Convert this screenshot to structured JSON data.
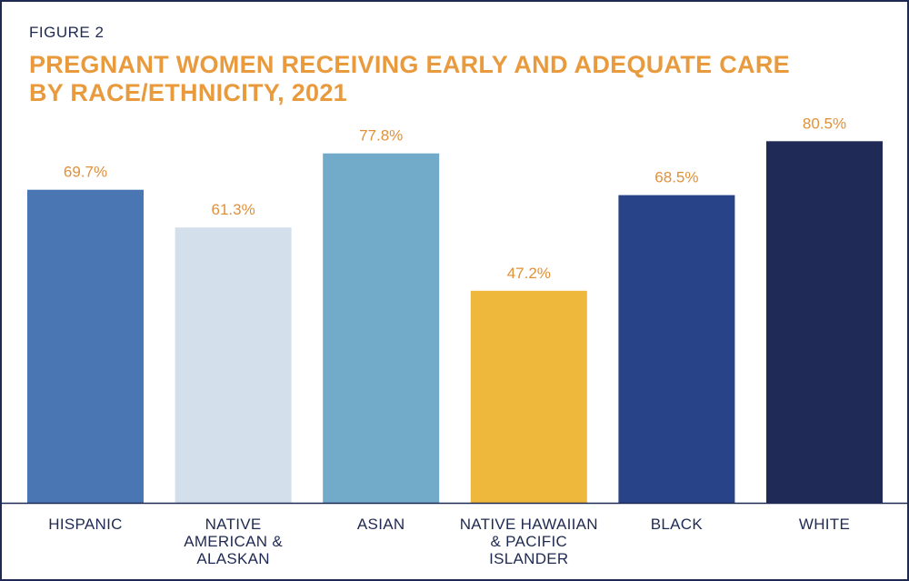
{
  "figure_label": "FIGURE 2",
  "title_lines": [
    "PREGNANT WOMEN RECEIVING EARLY AND ADEQUATE CARE",
    "BY RACE/ETHNICITY, 2021"
  ],
  "colors": {
    "title": "#e89a3c",
    "value_label": "#e0913a",
    "text": "#1f2a52",
    "border": "#1f2a52",
    "bars": [
      "#4a77b4",
      "#d3e0ec",
      "#72abc9",
      "#eeb83c",
      "#284387",
      "#1f2a57"
    ]
  },
  "chart_data": {
    "type": "bar",
    "title": "PREGNANT WOMEN RECEIVING EARLY AND ADEQUATE CARE BY RACE/ETHNICITY, 2021",
    "categories": [
      [
        "HISPANIC"
      ],
      [
        "NATIVE",
        "AMERICAN &",
        "ALASKAN"
      ],
      [
        "ASIAN"
      ],
      [
        "NATIVE HAWAIIAN",
        "& PACIFIC",
        "ISLANDER"
      ],
      [
        "BLACK"
      ],
      [
        "WHITE"
      ]
    ],
    "values": [
      69.7,
      61.3,
      77.8,
      47.2,
      68.5,
      80.5
    ],
    "value_labels": [
      "69.7%",
      "61.3%",
      "77.8%",
      "47.2%",
      "68.5%",
      "80.5%"
    ],
    "xlabel": "",
    "ylabel": "",
    "ylim": [
      0,
      100
    ],
    "grid": false,
    "legend": "none"
  }
}
